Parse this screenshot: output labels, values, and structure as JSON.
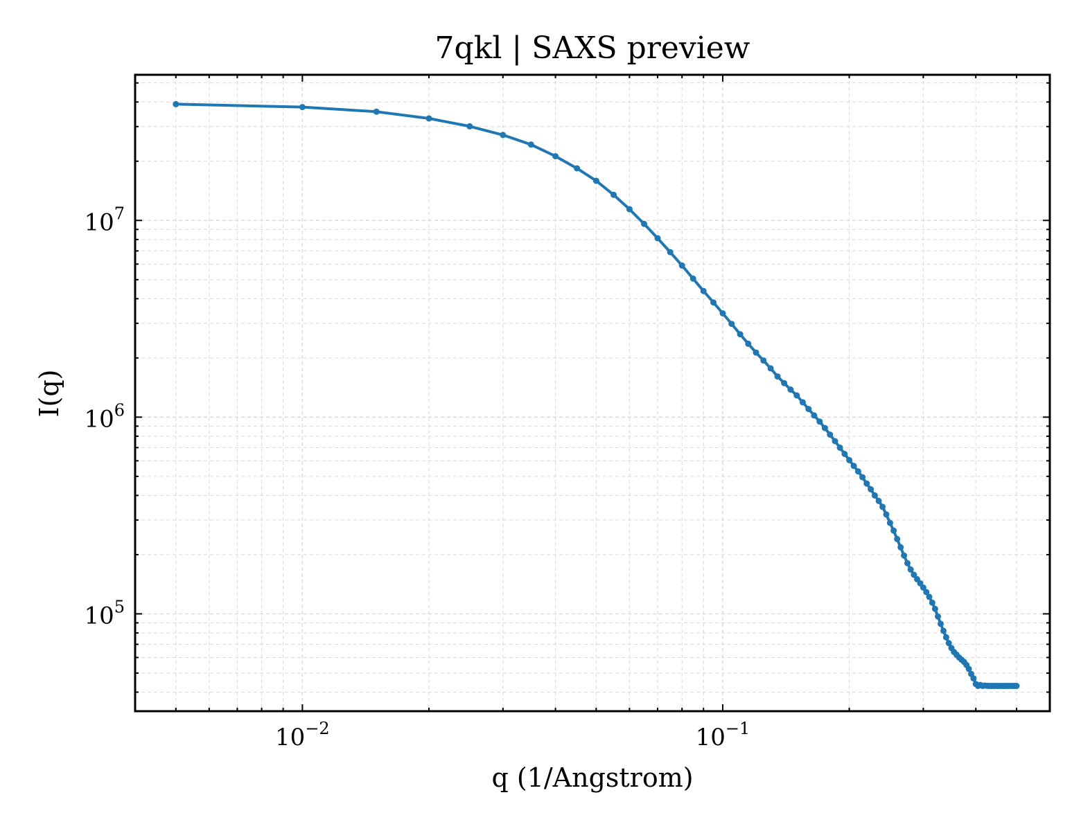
{
  "chart_data": {
    "type": "line",
    "title": "7qkl | SAXS preview",
    "xlabel": "q (1/Angstrom)",
    "ylabel": "I(q)",
    "xscale": "log",
    "yscale": "log",
    "xlim": [
      0.004,
      0.6
    ],
    "ylim": [
      32000,
      55000000
    ],
    "grid": true,
    "legend": "none",
    "x_ticks": [
      {
        "base": "10",
        "exp": "−2",
        "value": 0.01
      },
      {
        "base": "10",
        "exp": "−1",
        "value": 0.1
      }
    ],
    "y_ticks": [
      {
        "base": "10",
        "exp": "5",
        "value": 100000
      },
      {
        "base": "10",
        "exp": "6",
        "value": 1000000
      },
      {
        "base": "10",
        "exp": "7",
        "value": 10000000
      }
    ],
    "colors": {
      "series": "#1f77b4",
      "grid": "#d9d9d9",
      "axes": "#000000"
    },
    "series": [
      {
        "x": [
          0.005,
          0.01,
          0.015,
          0.02,
          0.025,
          0.03,
          0.035,
          0.04,
          0.045,
          0.05,
          0.055,
          0.06,
          0.065,
          0.07,
          0.075,
          0.08,
          0.085,
          0.09,
          0.095,
          0.1,
          0.105,
          0.11,
          0.115,
          0.12,
          0.125,
          0.13,
          0.135,
          0.14,
          0.145,
          0.15,
          0.155,
          0.16,
          0.165,
          0.17,
          0.175,
          0.18,
          0.185,
          0.19,
          0.195,
          0.2,
          0.205,
          0.21,
          0.215,
          0.22,
          0.225,
          0.23,
          0.235,
          0.24,
          0.245,
          0.25,
          0.255,
          0.26,
          0.265,
          0.27,
          0.275,
          0.28,
          0.285,
          0.29,
          0.295,
          0.3,
          0.305,
          0.31,
          0.315,
          0.32,
          0.325,
          0.33,
          0.335,
          0.34,
          0.345,
          0.35,
          0.355,
          0.36,
          0.365,
          0.37,
          0.375,
          0.38,
          0.385,
          0.39,
          0.395,
          0.4,
          0.405,
          0.41,
          0.415,
          0.42,
          0.425,
          0.43,
          0.435,
          0.44,
          0.445,
          0.45,
          0.455,
          0.46,
          0.465,
          0.47,
          0.475,
          0.48,
          0.485,
          0.49,
          0.495,
          0.5
        ],
        "y": [
          39000000,
          37700000,
          35700000,
          33000000,
          30100000,
          27200000,
          24300000,
          21200000,
          18400000,
          15900000,
          13500000,
          11400000,
          9600000,
          8120000,
          6900000,
          5900000,
          5060000,
          4380000,
          3830000,
          3370000,
          2980000,
          2640000,
          2360000,
          2130000,
          1940000,
          1770000,
          1610000,
          1490000,
          1380000,
          1290000,
          1190000,
          1100000,
          1020000,
          950000,
          880000,
          815000,
          755000,
          700000,
          650000,
          605000,
          565000,
          530000,
          495000,
          460000,
          430000,
          400000,
          375000,
          350000,
          320000,
          290000,
          265000,
          240000,
          218000,
          198000,
          181000,
          168000,
          158000,
          150000,
          143000,
          136000,
          129000,
          122000,
          114000,
          106000,
          97000,
          89000,
          82000,
          76000,
          71000,
          67000,
          64000,
          62000,
          60000,
          58500,
          57000,
          55000,
          52500,
          49500,
          47000,
          44000,
          43000,
          43500,
          43000,
          43200,
          43100,
          43000,
          43000,
          43000,
          43000,
          43000,
          43000,
          43000,
          43000,
          43000,
          43000,
          43000,
          43000,
          43000,
          43000,
          43000
        ]
      }
    ]
  }
}
